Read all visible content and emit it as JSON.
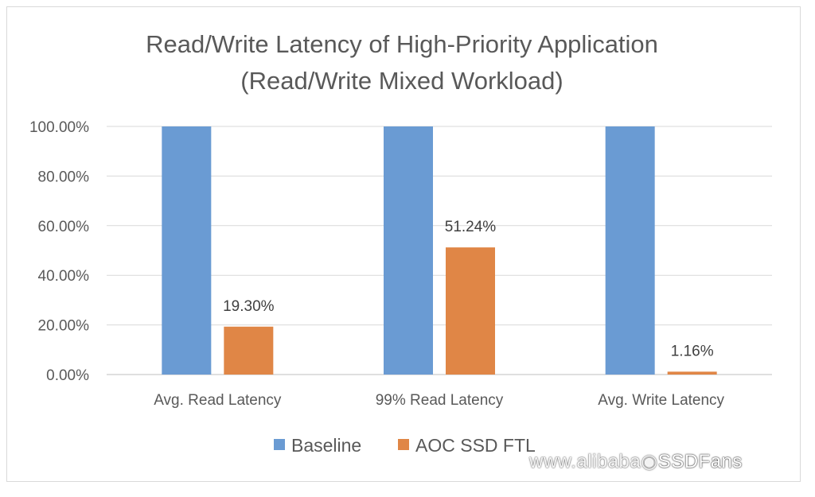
{
  "chart_data": {
    "type": "bar",
    "title_lines": [
      "Read/Write Latency of High-Priority Application",
      "(Read/Write Mixed Workload)"
    ],
    "categories": [
      "Avg. Read Latency",
      "99% Read Latency",
      "Avg. Write Latency"
    ],
    "series": [
      {
        "name": "Baseline",
        "values": [
          100,
          100,
          100
        ],
        "color": "#6a9bd3",
        "data_labels": [
          "",
          "",
          ""
        ]
      },
      {
        "name": "AOC SSD FTL",
        "values": [
          19.3,
          51.24,
          1.16
        ],
        "color": "#e08646",
        "data_labels": [
          "19.30%",
          "51.24%",
          "1.16%"
        ]
      }
    ],
    "y_ticks": [
      "0.00%",
      "20.00%",
      "40.00%",
      "60.00%",
      "80.00%",
      "100.00%"
    ],
    "ylim": [
      0,
      100
    ],
    "grid": true,
    "legend_position": "bottom"
  },
  "watermark": {
    "left_text": "www.alibaba",
    "right_text": "SSDFans"
  }
}
